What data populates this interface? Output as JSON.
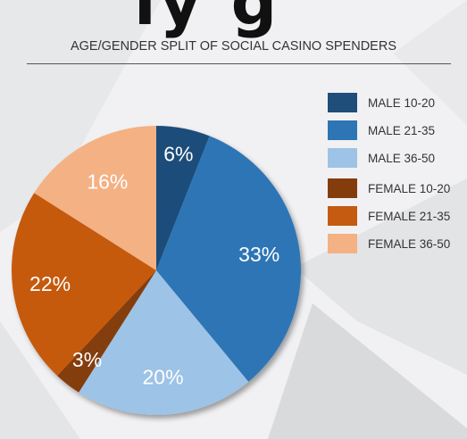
{
  "header": {
    "fragment": "ly g"
  },
  "chart_data": {
    "type": "pie",
    "title": "AGE/GENDER SPLIT OF SOCIAL CASINO SPENDERS",
    "categories": [
      "MALE 10-20",
      "MALE 21-35",
      "MALE 36-50",
      "FEMALE 10-20",
      "FEMALE 21-35",
      "FEMALE 36-50"
    ],
    "values": [
      6,
      33,
      20,
      3,
      22,
      16
    ],
    "value_labels": [
      "6%",
      "33%",
      "20%",
      "3%",
      "22%",
      "16%"
    ],
    "colors": [
      "#1f4e7a",
      "#2e75b6",
      "#9dc3e6",
      "#843c0c",
      "#c55a11",
      "#f4b183"
    ],
    "legend_position": "right"
  }
}
